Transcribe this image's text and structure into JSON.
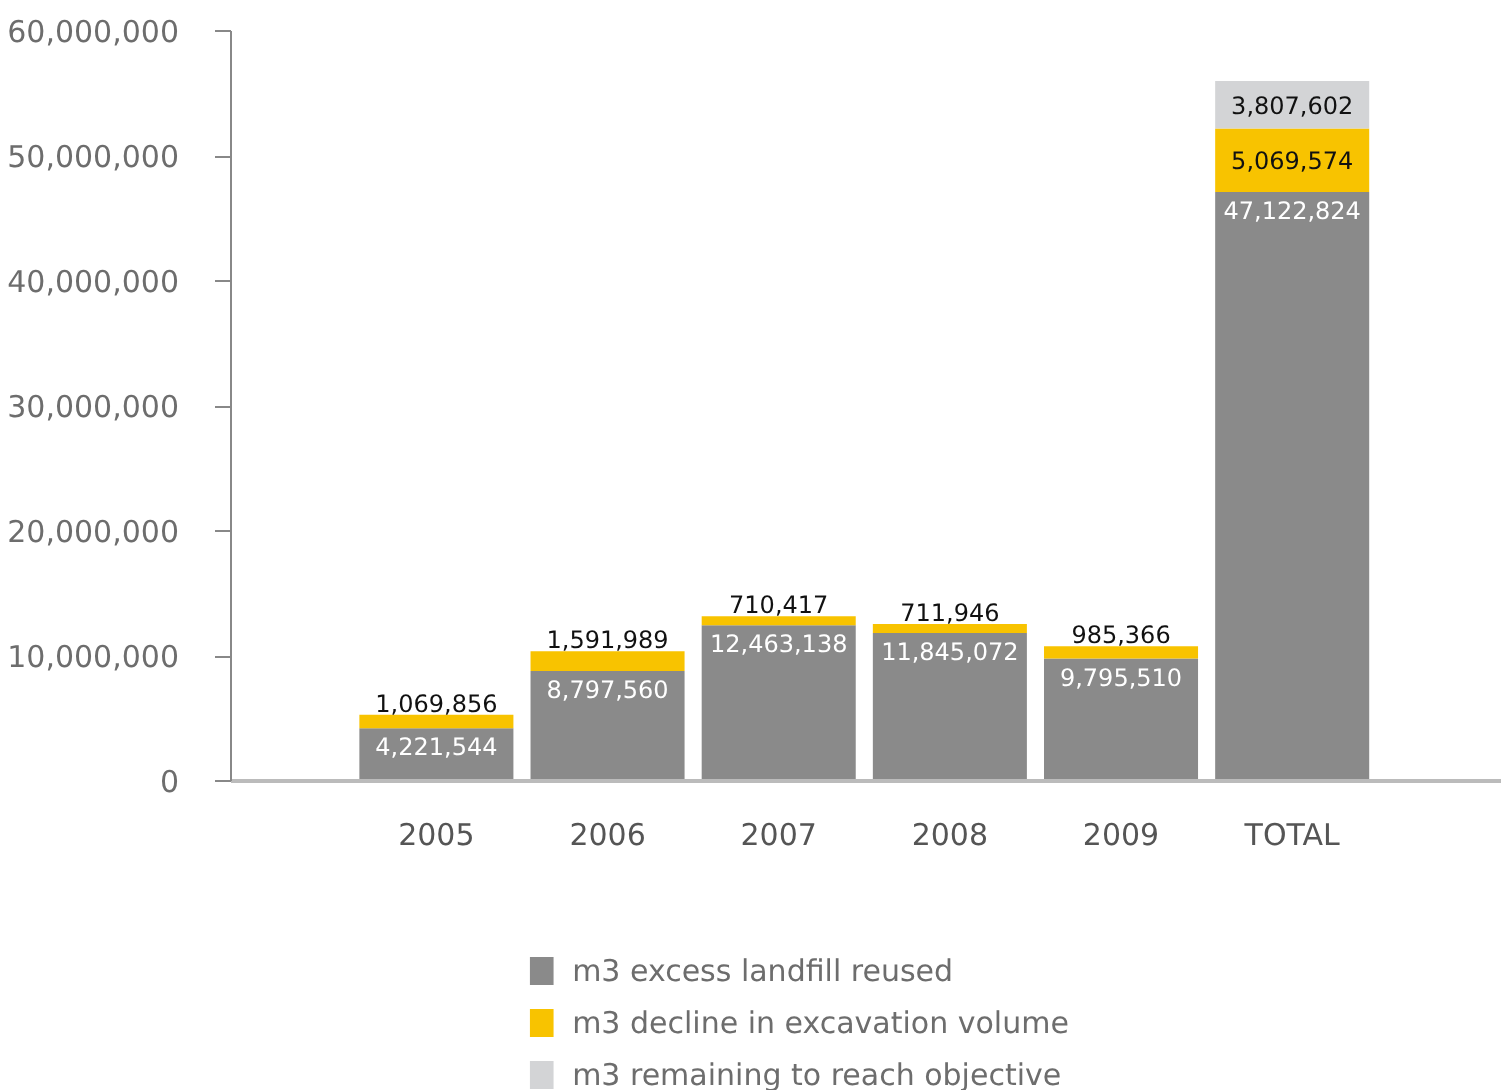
{
  "chart_data": {
    "type": "bar",
    "stacked": true,
    "grid": false,
    "legend": "bottom",
    "categories": [
      "2005",
      "2006",
      "2007",
      "2008",
      "2009",
      "TOTAL"
    ],
    "series": [
      {
        "name": "m3 excess landfill reused",
        "color": "#8a8a8a",
        "values": [
          4221544,
          8797560,
          12463138,
          11845072,
          9795510,
          47122824
        ],
        "value_labels": [
          "4,221,544",
          "8,797,560",
          "12,463,138",
          "11,845,072",
          "9,795,510",
          "47,122,824"
        ]
      },
      {
        "name": "m3 decline in excavation volume",
        "color": "#f8c300",
        "values": [
          1069856,
          1591989,
          710417,
          711946,
          985366,
          5069574
        ],
        "value_labels": [
          "1,069,856",
          "1,591,989",
          "710,417",
          "711,946",
          "985,366",
          "5,069,574"
        ]
      },
      {
        "name": "m3 remaining to reach objective",
        "color": "#d3d4d6",
        "values": [
          null,
          null,
          null,
          null,
          null,
          3807602
        ],
        "value_labels": [
          null,
          null,
          null,
          null,
          null,
          "3,807,602"
        ]
      }
    ],
    "ylim": [
      0,
      60000000
    ],
    "yticks": [
      0,
      {
        "value": 10000000,
        "label": "10,000,000"
      },
      {
        "value": 20000000,
        "label": "20,000,000"
      },
      {
        "value": 30000000,
        "label": "30,000,000"
      },
      {
        "value": 40000000,
        "label": "40,000,000"
      },
      {
        "value": 50000000,
        "label": "50,000,000"
      },
      {
        "value": 60000000,
        "label": "60,000,000"
      }
    ]
  }
}
